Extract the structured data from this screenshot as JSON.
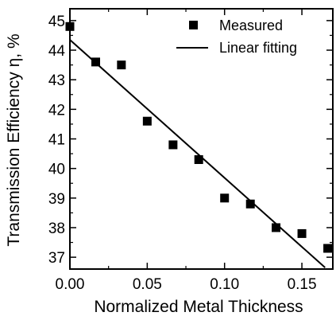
{
  "chart_data": {
    "type": "scatter",
    "xlabel": "Normalized Metal Thickness",
    "ylabel": "Transmission Efficiency η, %",
    "xlim": [
      0.0,
      0.17
    ],
    "ylim": [
      36.6,
      45.4
    ],
    "x_ticks": [
      0.0,
      0.05,
      0.1,
      0.15
    ],
    "x_tick_labels": [
      "0.00",
      "0.05",
      "0.10",
      "0.15"
    ],
    "x_minor_ticks": [
      0.025,
      0.075,
      0.125
    ],
    "y_ticks": [
      37,
      38,
      39,
      40,
      41,
      42,
      43,
      44,
      45
    ],
    "y_tick_labels": [
      "37",
      "38",
      "39",
      "40",
      "41",
      "42",
      "43",
      "44",
      "45"
    ],
    "y_minor_ticks": [
      37.5,
      38.5,
      39.5,
      40.5,
      41.5,
      42.5,
      43.5,
      44.5
    ],
    "grid": false,
    "legend_position": "top-right",
    "series": [
      {
        "name": "Measured",
        "style": "square-marker",
        "color": "#000000",
        "x": [
          0.0,
          0.0167,
          0.0333,
          0.05,
          0.0667,
          0.0833,
          0.1,
          0.1167,
          0.1333,
          0.15,
          0.1667
        ],
        "y": [
          44.8,
          43.6,
          43.5,
          41.6,
          40.8,
          40.3,
          39.0,
          38.8,
          38.0,
          37.8,
          37.3
        ]
      },
      {
        "name": "Linear fitting",
        "style": "line",
        "color": "#000000",
        "x": [
          0.0,
          0.165
        ],
        "y": [
          44.35,
          36.65
        ]
      }
    ]
  }
}
